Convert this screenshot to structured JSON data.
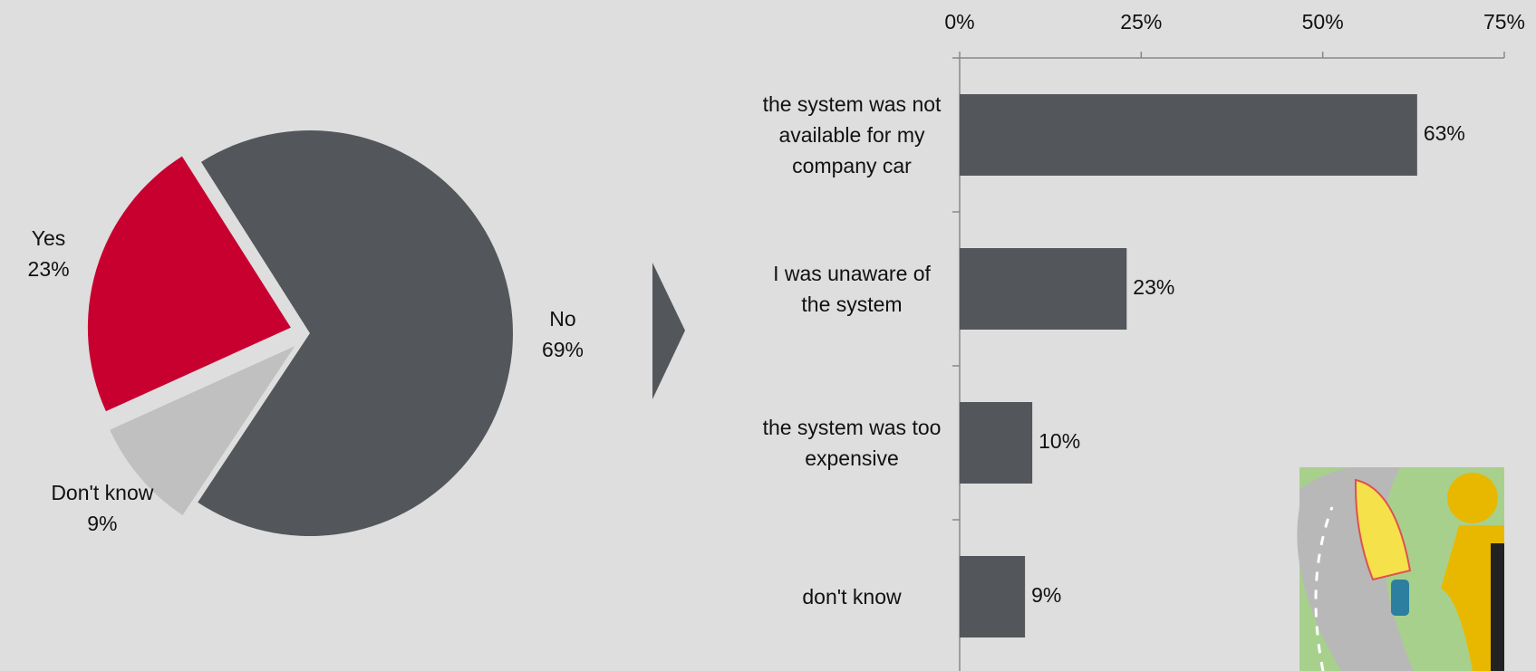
{
  "chart_data": [
    {
      "type": "pie",
      "categories": [
        "No",
        "Don't know",
        "Yes"
      ],
      "values": [
        69,
        9,
        23
      ],
      "value_labels": [
        "69%",
        "9%",
        "23%"
      ],
      "colors": [
        "#53575b",
        "#c0c0c0",
        "#c8002f"
      ]
    },
    {
      "type": "hbar",
      "categories": [
        "the system was not available for my company car",
        "I was unaware of the system",
        "the system was too expensive",
        "don't know"
      ],
      "values": [
        63,
        23,
        10,
        9
      ],
      "value_labels": [
        "63%",
        "23%",
        "10%",
        "9%"
      ],
      "color": "#53575b",
      "xlim": [
        0,
        75
      ],
      "xticks": [
        {
          "value": 0,
          "label": "0%"
        },
        {
          "value": 25,
          "label": "25%"
        },
        {
          "value": 50,
          "label": "50%"
        },
        {
          "value": 75,
          "label": "75%"
        }
      ]
    }
  ]
}
